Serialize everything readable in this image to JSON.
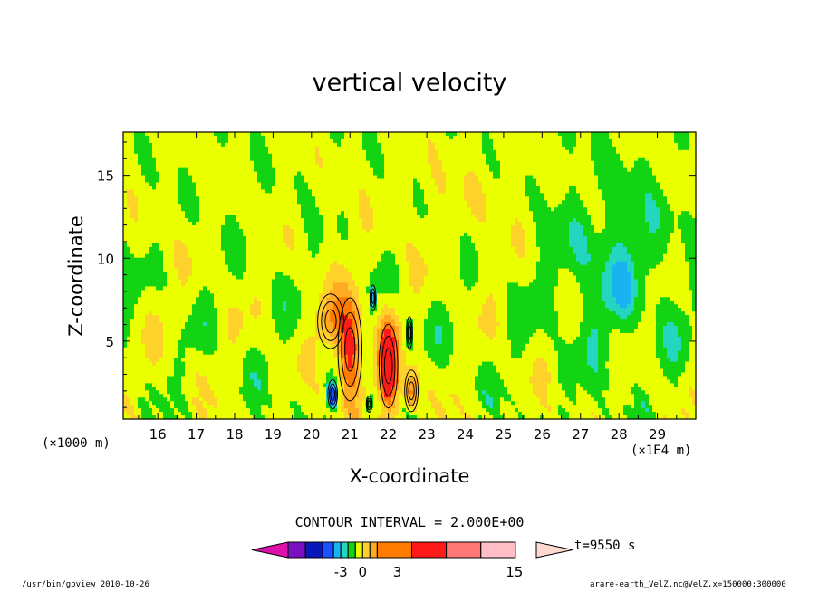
{
  "chart_data": {
    "type": "heatmap",
    "title": "vertical velocity",
    "xlabel": "X-coordinate",
    "ylabel": "Z-coordinate",
    "x_unit_label": "(×1E4 m)",
    "y_unit_label": "(×1000 m)",
    "xlim": [
      15.1,
      30.0
    ],
    "ylim": [
      0.3,
      17.6
    ],
    "x_ticks": [
      16,
      17,
      18,
      19,
      20,
      21,
      22,
      23,
      24,
      25,
      26,
      27,
      28,
      29
    ],
    "y_ticks": [
      5,
      10,
      15
    ],
    "contour_interval": "CONTOUR INTERVAL = 2.000E+00",
    "time_label": "t=9550 s",
    "colorbar": {
      "levels": [
        -10,
        -8,
        -6,
        -4,
        -3,
        -2,
        -1,
        0,
        1,
        2,
        3,
        6,
        9,
        12,
        15,
        20
      ],
      "tick_labels": [
        "-3",
        "0",
        "3",
        "15"
      ],
      "colors": [
        "#dd11aa",
        "#7a10c0",
        "#0a17b8",
        "#1a52ff",
        "#19b3f0",
        "#22d6c0",
        "#12d412",
        "#eaff00",
        "#ffd22b",
        "#ffaa22",
        "#ff7a00",
        "#ff1a1a",
        "#ff7777",
        "#ffbdc6",
        "#ffd8d0"
      ]
    },
    "features": [
      {
        "kind": "updraft",
        "x": 21.0,
        "z": 4.5,
        "w": 0.32,
        "h": 3.2,
        "max": 7
      },
      {
        "kind": "updraft",
        "x": 22.0,
        "z": 3.5,
        "w": 0.25,
        "h": 2.6,
        "max": 9
      },
      {
        "kind": "updraft",
        "x": 22.6,
        "z": 2.0,
        "w": 0.18,
        "h": 1.3,
        "max": 5
      },
      {
        "kind": "updraft",
        "x": 20.5,
        "z": 6.2,
        "w": 0.35,
        "h": 1.7,
        "max": 3
      },
      {
        "kind": "downdraft",
        "x": 20.55,
        "z": 1.8,
        "w": 0.13,
        "h": 0.9,
        "max": -5
      },
      {
        "kind": "downdraft",
        "x": 21.6,
        "z": 7.6,
        "w": 0.08,
        "h": 0.8,
        "max": -3
      },
      {
        "kind": "downdraft",
        "x": 22.55,
        "z": 5.5,
        "w": 0.08,
        "h": 1.0,
        "max": -3
      },
      {
        "kind": "downdraft",
        "x": 21.5,
        "z": 1.2,
        "w": 0.08,
        "h": 0.5,
        "max": -3
      }
    ]
  },
  "footer": {
    "left": "/usr/bin/gpview  2010-10-26",
    "right": "arare-earth_VelZ.nc@VelZ,x=150000:300000"
  }
}
